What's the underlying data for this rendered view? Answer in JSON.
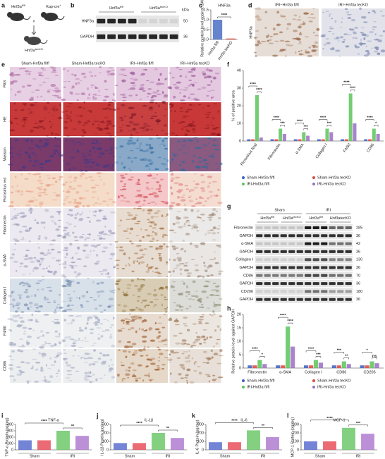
{
  "panel_labels": [
    "a",
    "b",
    "c",
    "d",
    "e",
    "f",
    "g",
    "h",
    "i",
    "j",
    "k",
    "l"
  ],
  "panels": {
    "a": {
      "parent1": "Hnf3a",
      "parent1_sup": "fl/fl",
      "parent2": "Kap-cre",
      "parent2_sup": "+",
      "cross": "x",
      "offspring": "Hnf3a",
      "offspring_sup": "tecKO"
    },
    "b": {
      "lanes": [
        {
          "base": "Hnf3a",
          "sup": "fl/fl"
        },
        {
          "base": "Hnf3a",
          "sup": "tecKO"
        }
      ],
      "unit": "kDa",
      "rows": [
        {
          "label": "HNF3a",
          "kda": "50"
        },
        {
          "label": "GAPDH",
          "kda": "36"
        }
      ]
    },
    "d": {
      "columns": [
        "IRI−Hnf3a fl/fl",
        "IRI−Hnf3a tecKO"
      ],
      "row": "HNF3a"
    },
    "e": {
      "columns": [
        "Sham-Hnf3a fl/fl",
        "Sham-Hnf3a tecKO",
        "IRI–Hnf3a fl/fl",
        "IRI–Hnf3a tecKO"
      ],
      "rows": [
        "PAS",
        "HE",
        "Masson",
        "Picrosirius red",
        "Fibronectin",
        "α-SMA",
        "Collagen I",
        "F4/80",
        "CD86"
      ]
    },
    "g": {
      "groups": [
        "Sham",
        "IRI"
      ],
      "lanes": [
        {
          "base": "Hnf3a",
          "sup": "fl/fl"
        },
        {
          "base": "Hnf3a",
          "sup": "tecKO"
        },
        {
          "base": "Hnf3a",
          "sup": "fl/fl"
        },
        {
          "base": "Hnf3atecKO",
          "sup": ""
        }
      ],
      "rows": [
        {
          "label": "Fibronectin",
          "kda": "285"
        },
        {
          "label": "GAPDH",
          "kda": "36"
        },
        {
          "label": "α-SMA",
          "kda": "42"
        },
        {
          "label": "GAPDH",
          "kda": "36"
        },
        {
          "label": "Collagen I",
          "kda": "130"
        },
        {
          "label": "GAPDH",
          "kda": "36"
        },
        {
          "label": "CD86",
          "kda": "70"
        },
        {
          "label": "GAPDH",
          "kda": "36"
        },
        {
          "label": "CD206",
          "kda": "180"
        },
        {
          "label": "GAPDH",
          "kda": "36"
        }
      ]
    }
  },
  "chart_data": [
    {
      "type": "bar",
      "title": "HNF3a",
      "ylabel": "Relative protein level against GAPDH",
      "categories": [
        "Hnf3a fl/fl",
        "Hnf3a tecKO"
      ],
      "values": [
        1.0,
        0.05
      ],
      "colors": [
        "#4a6fc4",
        "#e0463e"
      ],
      "ylim": [
        0,
        1.5
      ],
      "yticks": [
        {
          "value": 0,
          "label": "0.0"
        },
        0.5,
        {
          "value": 1,
          "label": "1.0"
        },
        1.5
      ],
      "annotations": [
        "****"
      ]
    },
    {
      "type": "bar",
      "ylabel": "% of positive area",
      "categories": [
        "Picrosirius Red",
        "Fibronectin",
        "α-SMA",
        "Collagen I",
        "F4/80",
        "CD86"
      ],
      "series": [
        {
          "name": "Sham-Hnf3a fl/fl",
          "color": "#3b5fc0",
          "values": [
            1,
            1,
            1,
            1,
            1,
            1
          ]
        },
        {
          "name": "Sham-Hnf3a tecKO",
          "color": "#e0463e",
          "values": [
            1,
            1,
            1,
            1,
            1,
            1
          ]
        },
        {
          "name": "IRI-Hnf3a fl/fl",
          "color": "#5cc45a",
          "values": [
            26,
            7,
            5,
            7,
            27,
            7
          ]
        },
        {
          "name": "IRI-Hnf3a tecKO",
          "color": "#9a6fc4",
          "values": [
            2,
            4,
            3,
            5,
            10,
            4
          ]
        }
      ],
      "ylim": [
        0,
        40
      ],
      "yticks": [
        0,
        10,
        20,
        30,
        40
      ],
      "annotations": [
        [
          "****",
          "****"
        ],
        [
          "****",
          "***"
        ],
        [
          "****",
          "***"
        ],
        [
          "****",
          "***"
        ],
        [
          "****",
          "****"
        ],
        [
          "****",
          "*"
        ]
      ]
    },
    {
      "type": "bar",
      "ylabel": "Relative protein level against GAPDH",
      "categories": [
        "Fibronectin",
        "α-SMA",
        "Collagen I",
        "CD86",
        "CD206"
      ],
      "series": [
        {
          "name": "Sham-Hnf3a fl/fl",
          "color": "#3b5fc0",
          "values": [
            1,
            1,
            1,
            1,
            1
          ]
        },
        {
          "name": "Sham-Hnf3a tecKO",
          "color": "#e0463e",
          "values": [
            1,
            1,
            1,
            1,
            1
          ]
        },
        {
          "name": "IRI-Hnf3a fl/fl",
          "color": "#5cc45a",
          "values": [
            3,
            15.5,
            3,
            2.5,
            2.5
          ]
        },
        {
          "name": "IRI-Hnf3a tecKO",
          "color": "#9a6fc4",
          "values": [
            1.5,
            8,
            2,
            1.5,
            1.8
          ]
        }
      ],
      "ylim": [
        0,
        20
      ],
      "yticks": [
        0,
        5,
        10,
        15,
        20
      ],
      "annotations": [
        [
          "****",
          "*"
        ],
        [
          "****",
          "****"
        ],
        [
          "****",
          "***"
        ],
        [
          "***",
          "**"
        ],
        [
          "*",
          "ns"
        ]
      ]
    },
    {
      "type": "bar",
      "title": "TNF-α",
      "ylabel": "TNF-α Protein (pg/mg)",
      "groups": [
        "Sham",
        "IRI"
      ],
      "values": [
        150,
        150,
        300,
        220
      ],
      "colors": [
        "#5b6fd0",
        "#e8505a",
        "#6cc86a",
        "#b07cd0"
      ],
      "ylim": [
        0,
        400
      ],
      "yticks": [
        0,
        100,
        200,
        300,
        400
      ],
      "annotations": [
        "****",
        "**"
      ]
    },
    {
      "type": "bar",
      "title": "IL-1β",
      "ylabel": "IL-1β Protein (pg/mg)",
      "groups": [
        "Sham",
        "IRI"
      ],
      "values": [
        80,
        80,
        200,
        140
      ],
      "colors": [
        "#5b6fd0",
        "#e8505a",
        "#6cc86a",
        "#b07cd0"
      ],
      "ylim": [
        0,
        300
      ],
      "yticks": [
        0,
        100,
        200,
        300
      ],
      "annotations": [
        "****",
        "**"
      ]
    },
    {
      "type": "bar",
      "title": "IL-6",
      "ylabel": "IL-6 Protein (pg/mg)",
      "groups": [
        "Sham",
        "IRI"
      ],
      "values": [
        90,
        90,
        230,
        150
      ],
      "colors": [
        "#5b6fd0",
        "#e8505a",
        "#6cc86a",
        "#b07cd0"
      ],
      "ylim": [
        0,
        300
      ],
      "yticks": [
        0,
        100,
        200,
        300
      ],
      "annotations": [
        "****",
        "**"
      ]
    },
    {
      "type": "bar",
      "title": "MCP-1",
      "ylabel": "MCP-1 Protein (pg/mg)",
      "groups": [
        "Sham",
        "IRI"
      ],
      "values": [
        100,
        100,
        260,
        190
      ],
      "colors": [
        "#5b6fd0",
        "#e8505a",
        "#6cc86a",
        "#b07cd0"
      ],
      "ylim": [
        0,
        300
      ],
      "yticks": [
        0,
        100,
        200,
        300
      ],
      "annotations": [
        "****",
        "***"
      ]
    }
  ]
}
